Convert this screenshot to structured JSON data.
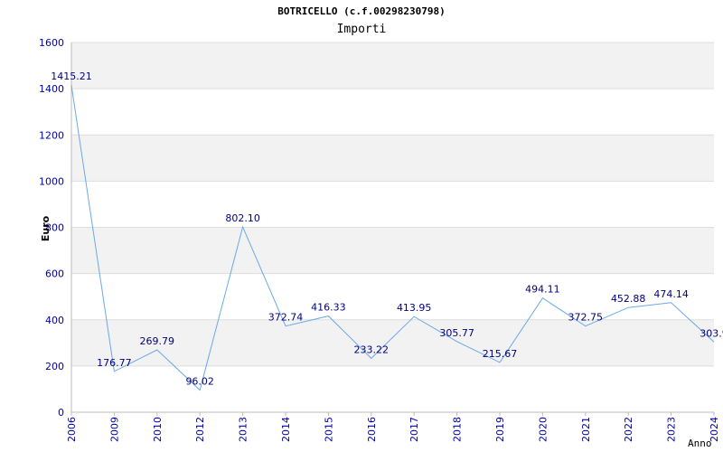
{
  "chart_data": {
    "type": "line",
    "title": "BOTRICELLO (c.f.00298230798)",
    "subtitle": "Importi",
    "ylabel": "Euro",
    "xlabel": "Anno",
    "ylim": [
      0,
      1600
    ],
    "yticks": [
      0,
      200,
      400,
      600,
      800,
      1000,
      1200,
      1400,
      1600
    ],
    "grid": true,
    "line_color": "#6aa8e8",
    "categories": [
      "2006",
      "2009",
      "2010",
      "2012",
      "2013",
      "2014",
      "2015",
      "2016",
      "2017",
      "2018",
      "2019",
      "2020",
      "2021",
      "2022",
      "2023",
      "2024"
    ],
    "values": [
      1415.21,
      176.77,
      269.79,
      96.02,
      802.1,
      372.74,
      416.33,
      233.22,
      413.95,
      305.77,
      215.67,
      494.11,
      372.75,
      452.88,
      474.14,
      303.9
    ],
    "data_labels": [
      "1415.21",
      "176.77",
      "269.79",
      "96.02",
      "802.10",
      "372.74",
      "416.33",
      "233.22",
      "413.95",
      "305.77",
      "215.67",
      "494.11",
      "372.75",
      "452.88",
      "474.14",
      "303.9"
    ]
  }
}
